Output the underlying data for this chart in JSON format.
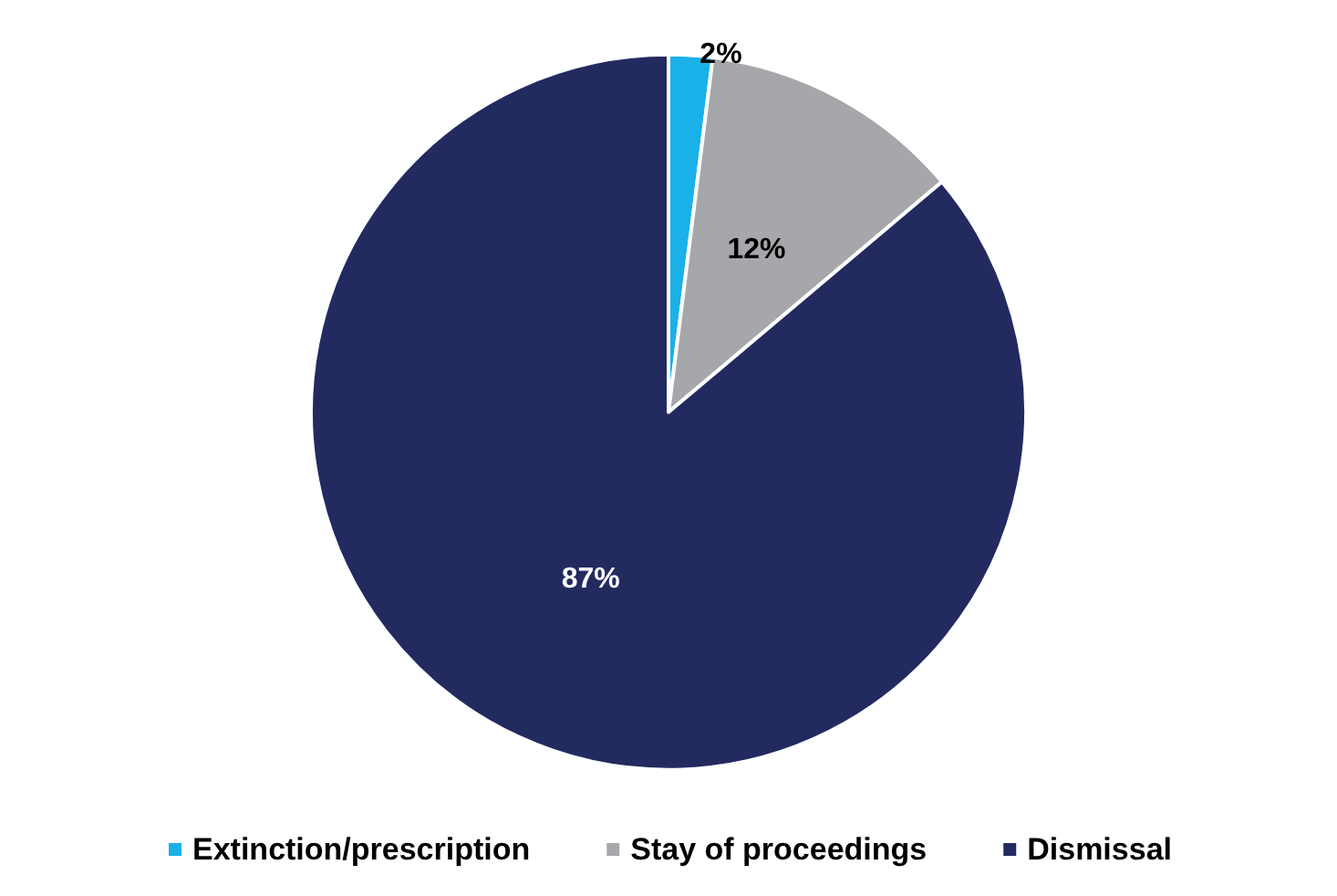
{
  "chart_data": {
    "type": "pie",
    "categories": [
      "Extinction/prescription",
      "Stay of proceedings",
      "Dismissal"
    ],
    "values": [
      2,
      12,
      87
    ],
    "colors": [
      "#1ab0e8",
      "#a6a7aa",
      "#232a60"
    ],
    "value_labels": [
      "2%",
      "12%",
      "87%"
    ],
    "legend": "bottom"
  }
}
